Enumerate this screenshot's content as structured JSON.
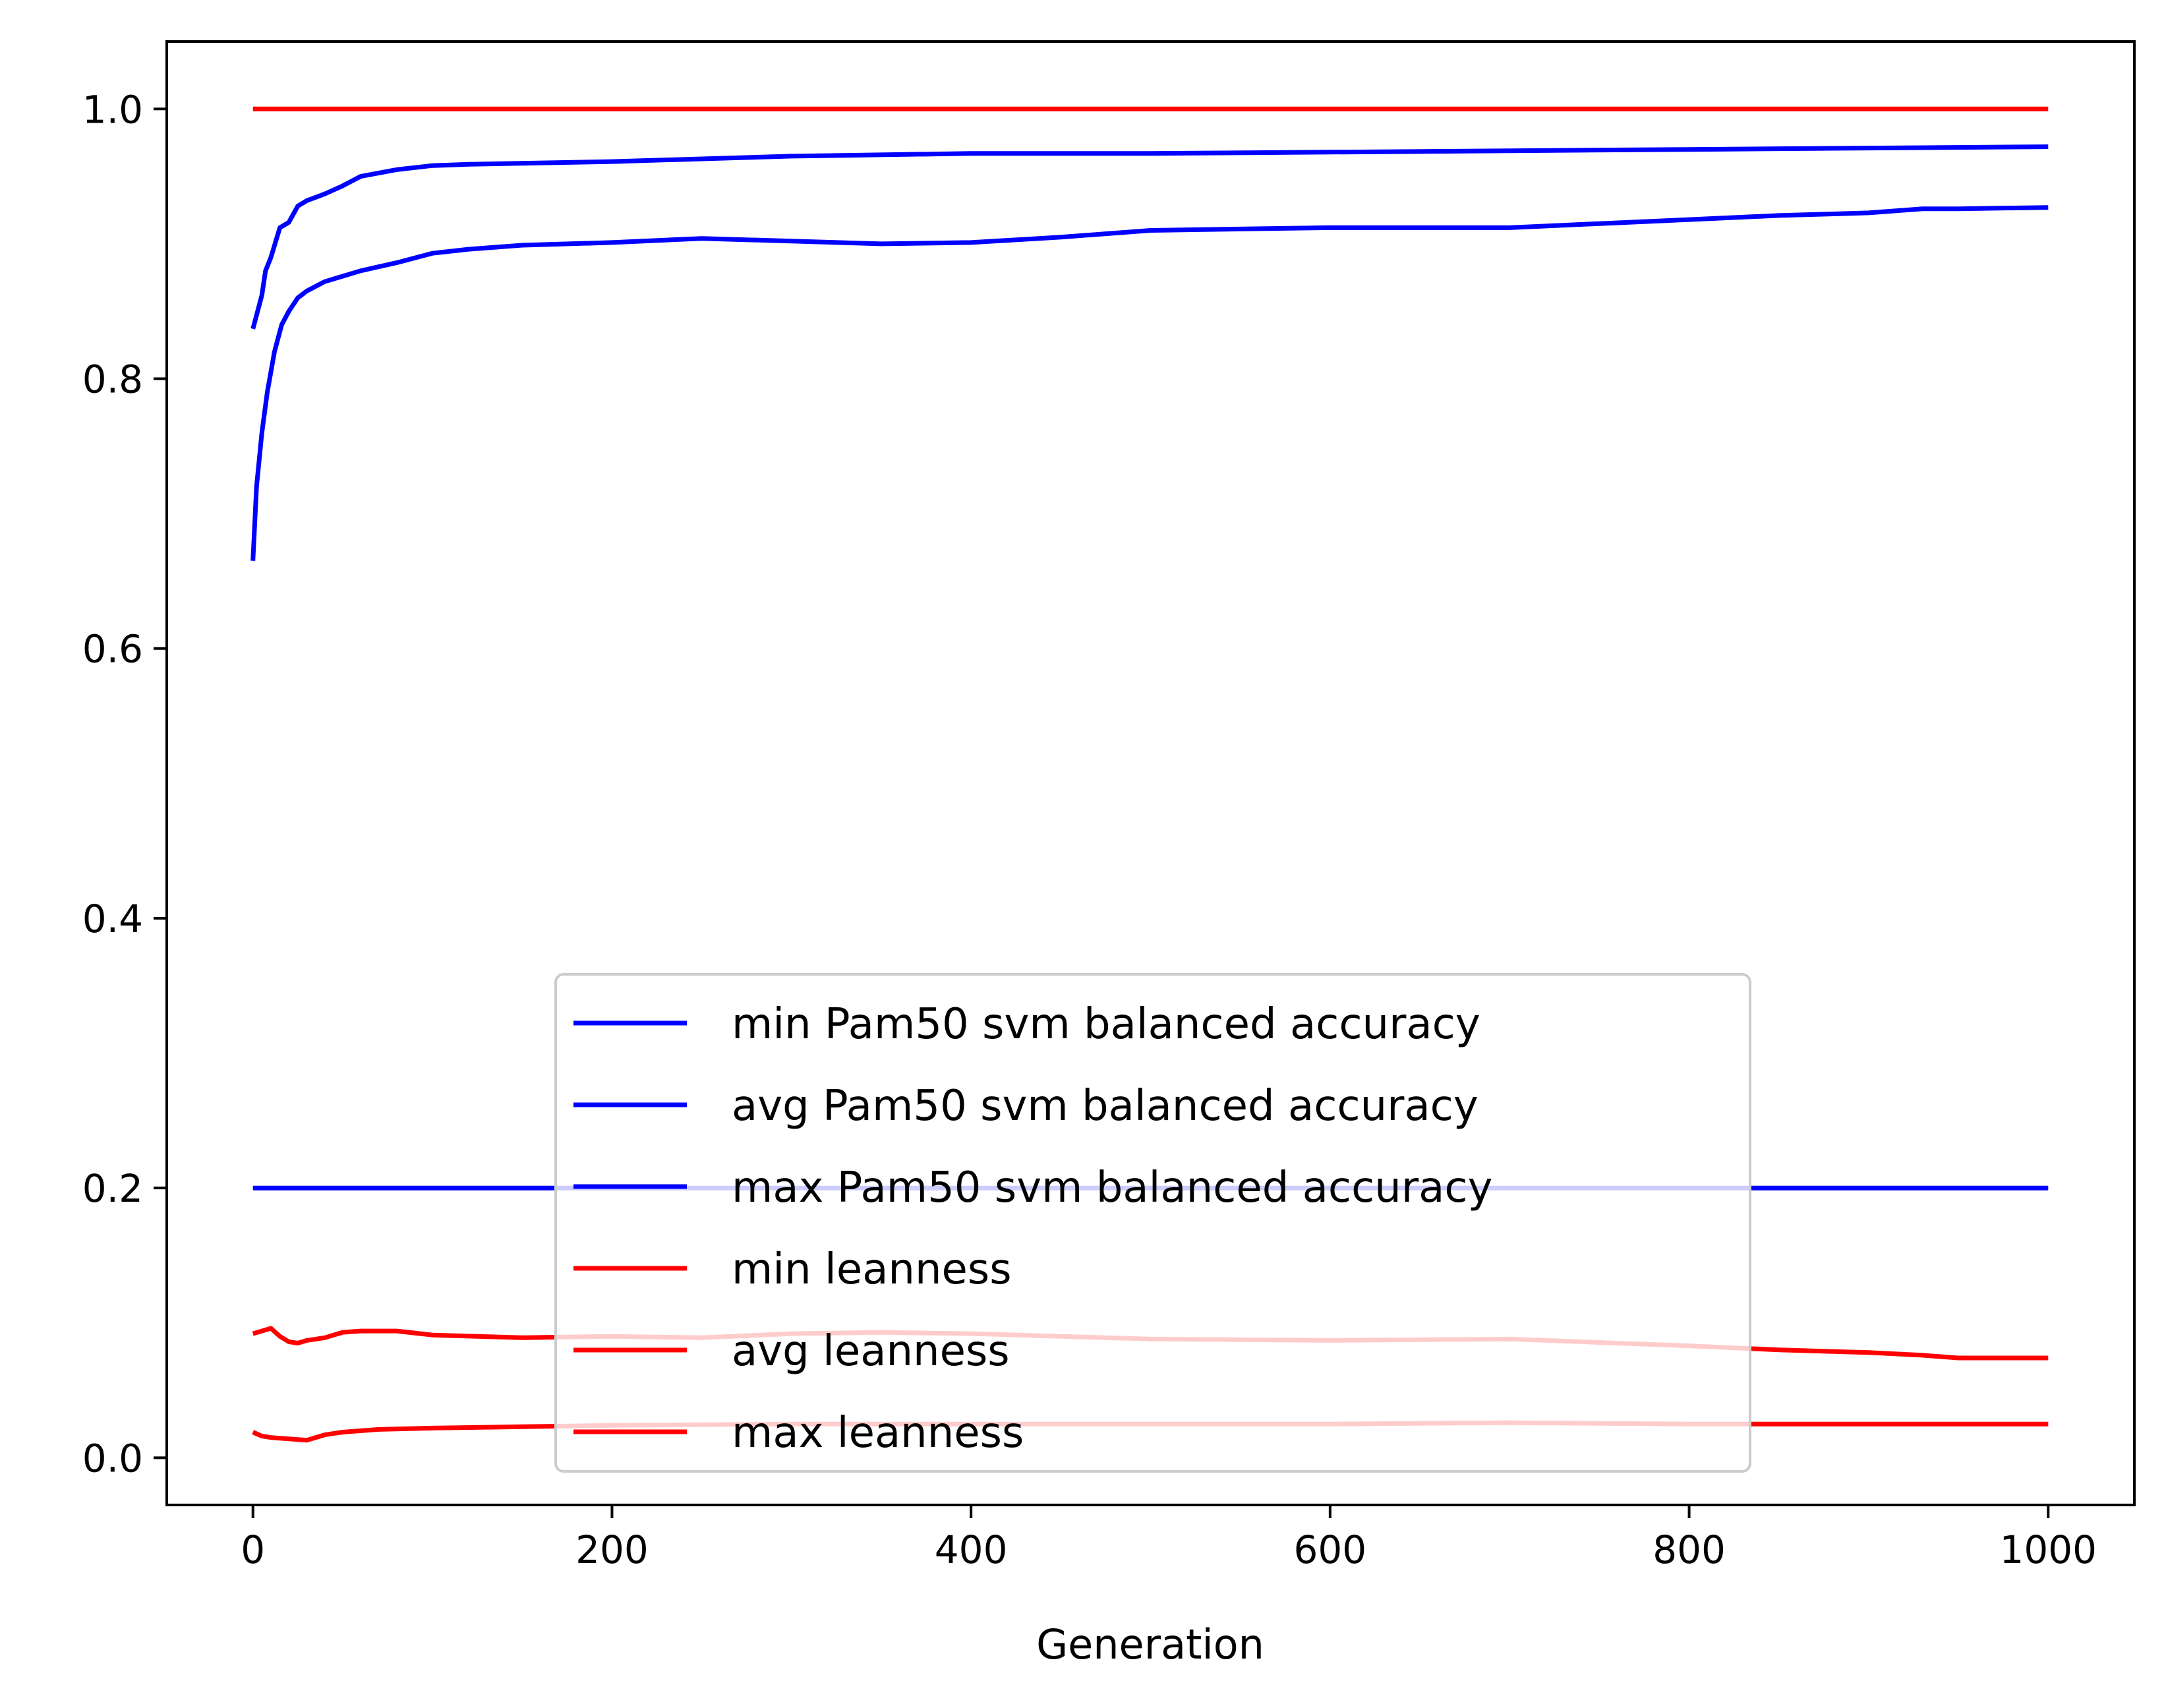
{
  "chart_data": {
    "type": "line",
    "title": "",
    "xlabel": "Generation",
    "ylabel": "",
    "xlim": [
      -48,
      1048
    ],
    "ylim": [
      -0.035,
      1.05
    ],
    "xticks": [
      0,
      200,
      400,
      600,
      800,
      1000
    ],
    "xtick_labels": [
      "0",
      "200",
      "400",
      "600",
      "800",
      "1000"
    ],
    "yticks": [
      0.0,
      0.2,
      0.4,
      0.6,
      0.8,
      1.0
    ],
    "ytick_labels": [
      "0.0",
      "0.2",
      "0.4",
      "0.6",
      "0.8",
      "1.0"
    ],
    "grid": false,
    "legend_position": "lower center",
    "series": [
      {
        "name": "min Pam50 svm balanced accuracy",
        "color": "#0000ff",
        "x": [
          0,
          1000
        ],
        "y": [
          0.2,
          0.2
        ]
      },
      {
        "name": "avg Pam50 svm balanced accuracy",
        "color": "#0000ff",
        "x": [
          0,
          2,
          5,
          8,
          12,
          16,
          20,
          25,
          30,
          40,
          50,
          60,
          80,
          100,
          120,
          150,
          200,
          250,
          300,
          350,
          400,
          450,
          500,
          550,
          600,
          650,
          700,
          750,
          800,
          850,
          900,
          930,
          950,
          1000
        ],
        "y": [
          0.665,
          0.72,
          0.76,
          0.79,
          0.82,
          0.84,
          0.85,
          0.86,
          0.865,
          0.872,
          0.876,
          0.88,
          0.886,
          0.893,
          0.896,
          0.899,
          0.901,
          0.904,
          0.902,
          0.9,
          0.901,
          0.905,
          0.91,
          0.911,
          0.912,
          0.912,
          0.912,
          0.915,
          0.918,
          0.921,
          0.923,
          0.926,
          0.926,
          0.927
        ]
      },
      {
        "name": "max Pam50 svm balanced accuracy",
        "color": "#0000ff",
        "x": [
          0,
          3,
          5,
          7,
          10,
          15,
          20,
          25,
          30,
          40,
          50,
          60,
          80,
          100,
          120,
          200,
          250,
          300,
          400,
          500,
          600,
          700,
          800,
          900,
          1000
        ],
        "y": [
          0.837,
          0.852,
          0.862,
          0.88,
          0.89,
          0.912,
          0.916,
          0.928,
          0.932,
          0.937,
          0.943,
          0.95,
          0.955,
          0.958,
          0.959,
          0.961,
          0.963,
          0.965,
          0.967,
          0.967,
          0.968,
          0.969,
          0.97,
          0.971,
          0.972
        ]
      },
      {
        "name": "min leanness",
        "color": "#ff0000",
        "x": [
          0,
          1000
        ],
        "y": [
          1.0,
          1.0
        ]
      },
      {
        "name": "avg leanness",
        "color": "#ff0000",
        "x": [
          0,
          5,
          10,
          15,
          20,
          25,
          30,
          40,
          50,
          60,
          80,
          100,
          150,
          200,
          250,
          300,
          350,
          400,
          450,
          500,
          600,
          700,
          800,
          850,
          900,
          930,
          950,
          1000
        ],
        "y": [
          0.092,
          0.094,
          0.096,
          0.09,
          0.086,
          0.085,
          0.087,
          0.089,
          0.093,
          0.094,
          0.094,
          0.091,
          0.089,
          0.09,
          0.089,
          0.092,
          0.093,
          0.092,
          0.09,
          0.088,
          0.087,
          0.088,
          0.083,
          0.08,
          0.078,
          0.076,
          0.074,
          0.074
        ]
      },
      {
        "name": "max leanness",
        "color": "#ff0000",
        "x": [
          0,
          5,
          10,
          20,
          30,
          40,
          50,
          70,
          100,
          150,
          200,
          300,
          400,
          500,
          600,
          700,
          800,
          900,
          1000
        ],
        "y": [
          0.019,
          0.016,
          0.015,
          0.014,
          0.013,
          0.017,
          0.019,
          0.021,
          0.022,
          0.023,
          0.024,
          0.025,
          0.025,
          0.025,
          0.025,
          0.026,
          0.025,
          0.025,
          0.025
        ]
      }
    ]
  }
}
